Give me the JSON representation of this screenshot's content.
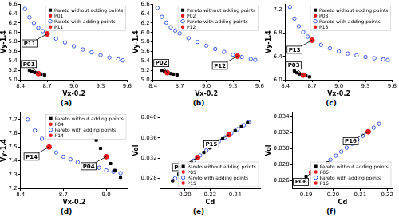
{
  "chart_data": [
    {
      "type": "scatter",
      "title": "(a)",
      "x_label": "Vx-0.2",
      "y_label": "Vy-1.4",
      "xlim": [
        8.4,
        9.6
      ],
      "ylim": [
        5.0,
        6.6
      ],
      "xticks": [
        8.4,
        8.7,
        {
          "value": 9,
          "label": "9.0"
        },
        9.3,
        9.6
      ],
      "yticks": [
        {
          "value": 5,
          "label": "5.0"
        },
        5.2,
        5.4,
        5.6,
        5.8,
        {
          "value": 6,
          "label": "6.0"
        },
        6.2,
        6.4,
        6.6
      ],
      "grid": false,
      "legend": "upper right",
      "series": [
        {
          "name": "Pareto without adding points",
          "color": "#000000",
          "marker": "square",
          "x": [
            8.5,
            8.53,
            8.56,
            8.6,
            8.63,
            8.67
          ],
          "y": [
            5.2,
            5.17,
            5.15,
            5.13,
            5.12,
            5.1
          ]
        },
        {
          "name": "P01",
          "color": "#e41a1c",
          "marker": "circle",
          "x": [
            8.6
          ],
          "y": [
            5.13
          ]
        },
        {
          "name": "Pareto with adding points",
          "color": "#3b5bdb",
          "marker": "open_circle",
          "x": [
            8.45,
            8.5,
            8.55,
            8.6,
            8.65,
            8.7,
            8.8,
            8.9,
            9.0,
            9.1,
            9.2,
            9.3,
            9.4,
            9.5,
            9.55
          ],
          "y": [
            6.5,
            6.32,
            6.2,
            6.1,
            6.03,
            5.97,
            5.87,
            5.79,
            5.71,
            5.64,
            5.58,
            5.52,
            5.47,
            5.43,
            5.41
          ]
        },
        {
          "name": "P11",
          "color": "#e41a1c",
          "marker": "circle",
          "x": [
            8.7
          ],
          "y": [
            5.97
          ]
        }
      ],
      "annotations": [
        {
          "text": "P01",
          "x": 8.6,
          "y": 5.13
        },
        {
          "text": "P11",
          "x": 8.7,
          "y": 5.97
        }
      ]
    },
    {
      "type": "scatter",
      "title": "(b)",
      "x_label": "Vx-0.2",
      "y_label": "Vy-1.4",
      "xlim": [
        8.4,
        9.6
      ],
      "ylim": [
        5.0,
        6.6
      ],
      "xticks": [
        8.4,
        8.7,
        {
          "value": 9,
          "label": "9.0"
        },
        9.3,
        9.6
      ],
      "yticks": [
        {
          "value": 5,
          "label": "5.0"
        },
        5.2,
        5.4,
        5.6,
        5.8,
        {
          "value": 6,
          "label": "6.0"
        },
        6.2,
        6.4,
        6.6
      ],
      "grid": false,
      "legend": "upper right",
      "series": [
        {
          "name": "Pareto without adding points",
          "color": "#000000",
          "marker": "square",
          "x": [
            8.5,
            8.53,
            8.56,
            8.6,
            8.63,
            8.67
          ],
          "y": [
            5.2,
            5.17,
            5.15,
            5.13,
            5.12,
            5.1
          ]
        },
        {
          "name": "P02",
          "color": "#e41a1c",
          "marker": "circle",
          "x": [
            8.56
          ],
          "y": [
            5.15
          ]
        },
        {
          "name": "Pareto with adding points",
          "color": "#3b5bdb",
          "marker": "open_circle",
          "x": [
            8.45,
            8.5,
            8.55,
            8.6,
            8.65,
            8.7,
            8.8,
            8.9,
            9.0,
            9.1,
            9.2,
            9.3,
            9.4,
            9.5,
            9.55
          ],
          "y": [
            6.52,
            6.33,
            6.21,
            6.11,
            6.04,
            5.98,
            5.88,
            5.8,
            5.72,
            5.65,
            5.59,
            5.53,
            5.48,
            5.44,
            5.42
          ]
        },
        {
          "name": "P12",
          "color": "#e41a1c",
          "marker": "circle",
          "x": [
            9.35
          ],
          "y": [
            5.5
          ]
        }
      ],
      "annotations": [
        {
          "text": "P02",
          "x": 8.56,
          "y": 5.15
        },
        {
          "text": "P12",
          "x": 9.35,
          "y": 5.5
        }
      ]
    },
    {
      "type": "scatter",
      "title": "(c)",
      "x_label": "Vx-0.2",
      "y_label": "Vy-1.4",
      "xlim": [
        8.4,
        9.6
      ],
      "ylim": [
        6.0,
        7.3
      ],
      "xticks": [
        8.4,
        8.7,
        {
          "value": 9,
          "label": "9.0"
        },
        9.3,
        9.6
      ],
      "yticks": [
        {
          "value": 6,
          "label": "6.0"
        },
        6.4,
        6.8,
        7.2
      ],
      "grid": false,
      "legend": "upper right",
      "series": [
        {
          "name": "Pareto without adding points",
          "color": "#000000",
          "marker": "square",
          "x": [
            8.5,
            8.53,
            8.56,
            8.6,
            8.63,
            8.67
          ],
          "y": [
            6.15,
            6.12,
            6.1,
            6.08,
            6.07,
            6.05
          ]
        },
        {
          "name": "P03",
          "color": "#e41a1c",
          "marker": "circle",
          "x": [
            8.6
          ],
          "y": [
            6.08
          ]
        },
        {
          "name": "Pareto with adding points",
          "color": "#3b5bdb",
          "marker": "open_circle",
          "x": [
            8.45,
            8.5,
            8.55,
            8.6,
            8.65,
            8.7,
            8.8,
            8.9,
            9.0,
            9.1,
            9.2,
            9.3,
            9.4,
            9.5,
            9.55
          ],
          "y": [
            7.25,
            7.05,
            6.92,
            6.82,
            6.74,
            6.68,
            6.6,
            6.54,
            6.49,
            6.45,
            6.42,
            6.39,
            6.37,
            6.35,
            6.34
          ]
        },
        {
          "name": "P13",
          "color": "#e41a1c",
          "marker": "circle",
          "x": [
            8.7
          ],
          "y": [
            6.68
          ]
        }
      ],
      "annotations": [
        {
          "text": "P03",
          "x": 8.6,
          "y": 6.08
        },
        {
          "text": "P13",
          "x": 8.7,
          "y": 6.68
        }
      ]
    },
    {
      "type": "scatter",
      "title": "(d)",
      "x_label": "Vx-0.2",
      "y_label": "Vy-1.4",
      "xlim": [
        8.4,
        9.15
      ],
      "ylim": [
        7.2,
        7.75
      ],
      "xticks": [
        8.4,
        8.7,
        {
          "value": 9,
          "label": "9.0"
        }
      ],
      "yticks": [
        7.2,
        7.3,
        7.4,
        7.5,
        7.6,
        7.7
      ],
      "grid": false,
      "legend": "upper right",
      "series": [
        {
          "name": "Pareto without adding points",
          "color": "#000000",
          "marker": "square",
          "x": [
            8.9,
            8.93,
            8.96,
            9.0,
            9.03,
            9.06,
            9.1
          ],
          "y": [
            7.6,
            7.55,
            7.49,
            7.43,
            7.38,
            7.33,
            7.28
          ]
        },
        {
          "name": "P04",
          "color": "#e41a1c",
          "marker": "circle",
          "x": [
            9.0
          ],
          "y": [
            7.43
          ]
        },
        {
          "name": "Pareto with adding points",
          "color": "#3b5bdb",
          "marker": "open_circle",
          "x": [
            8.45,
            8.5,
            8.55,
            8.6,
            8.65,
            8.7,
            8.75,
            8.8,
            8.85,
            8.9,
            8.95,
            9.0,
            9.05,
            9.1
          ],
          "y": [
            7.7,
            7.62,
            7.56,
            7.5,
            7.46,
            7.43,
            7.41,
            7.39,
            7.37,
            7.36,
            7.35,
            7.33,
            7.32,
            7.31
          ]
        },
        {
          "name": "P14",
          "color": "#e41a1c",
          "marker": "circle",
          "x": [
            8.6
          ],
          "y": [
            7.5
          ]
        }
      ],
      "annotations": [
        {
          "text": "P04",
          "x": 9.0,
          "y": 7.43
        },
        {
          "text": "P14",
          "x": 8.6,
          "y": 7.5
        }
      ]
    },
    {
      "type": "scatter",
      "title": "(e)",
      "x_label": "Cd",
      "y_label": "Vol",
      "xlim": [
        0.18,
        0.26
      ],
      "ylim": [
        0.026,
        0.041
      ],
      "xticks": [
        {
          "value": 0.2,
          "label": "0.20"
        },
        0.22,
        0.24
      ],
      "yticks": [
        0.028,
        0.032,
        0.036,
        {
          "value": 0.04,
          "label": "0.040"
        }
      ],
      "grid": false,
      "legend": "lower right",
      "series": [
        {
          "name": "Pareto without adding points",
          "color": "#000000",
          "marker": "square",
          "x": [
            0.19,
            0.195,
            0.2,
            0.205,
            0.21,
            0.215,
            0.22,
            0.225,
            0.23,
            0.235,
            0.24,
            0.245,
            0.25
          ],
          "y": [
            0.0275,
            0.0288,
            0.03,
            0.0311,
            0.0321,
            0.0331,
            0.034,
            0.0349,
            0.0358,
            0.0366,
            0.0374,
            0.0382,
            0.039
          ]
        },
        {
          "name": "P05",
          "color": "#e41a1c",
          "marker": "circle",
          "x": [
            0.21
          ],
          "y": [
            0.0321
          ]
        },
        {
          "name": "Pareto with adding points",
          "color": "#3b5bdb",
          "marker": "open_circle",
          "x": [
            0.192,
            0.197,
            0.202,
            0.207,
            0.212,
            0.217,
            0.222,
            0.227,
            0.232,
            0.237,
            0.242,
            0.247,
            0.251
          ],
          "y": [
            0.028,
            0.0293,
            0.0305,
            0.0315,
            0.0325,
            0.0335,
            0.0344,
            0.0353,
            0.0361,
            0.0369,
            0.0377,
            0.0385,
            0.0391
          ]
        },
        {
          "name": "P15",
          "color": "#e41a1c",
          "marker": "circle",
          "x": [
            0.235
          ],
          "y": [
            0.0366
          ]
        }
      ],
      "annotations": [
        {
          "text": "P05",
          "x": 0.21,
          "y": 0.0321
        },
        {
          "text": "P15",
          "x": 0.235,
          "y": 0.0366
        }
      ]
    },
    {
      "type": "scatter",
      "title": "(f)",
      "x_label": "Cd",
      "y_label": "Vol",
      "xlim": [
        0.185,
        0.222
      ],
      "ylim": [
        0.025,
        0.0345
      ],
      "xticks": [
        0.19,
        {
          "value": 0.2,
          "label": "0.20"
        },
        0.21,
        0.22
      ],
      "yticks": [
        0.026,
        0.028,
        {
          "value": 0.03,
          "label": "0.030"
        },
        0.032,
        0.034
      ],
      "grid": false,
      "legend": "lower right",
      "series": [
        {
          "name": "Pareto without adding points",
          "color": "#000000",
          "marker": "square",
          "x": [
            0.19,
            0.192,
            0.194,
            0.196,
            0.198
          ],
          "y": [
            0.0265,
            0.027,
            0.0274,
            0.0278,
            0.0282
          ]
        },
        {
          "name": "P06",
          "color": "#e41a1c",
          "marker": "circle",
          "x": [
            0.192
          ],
          "y": [
            0.027
          ]
        },
        {
          "name": "Pareto with adding points",
          "color": "#3b5bdb",
          "marker": "open_circle",
          "x": [
            0.199,
            0.201,
            0.203,
            0.205,
            0.207,
            0.209,
            0.211,
            0.213,
            0.215,
            0.217
          ],
          "y": [
            0.0286,
            0.0291,
            0.0296,
            0.0301,
            0.0306,
            0.0311,
            0.0316,
            0.0321,
            0.0326,
            0.0331
          ]
        },
        {
          "name": "P16",
          "color": "#e41a1c",
          "marker": "circle",
          "x": [
            0.213
          ],
          "y": [
            0.0321
          ]
        }
      ],
      "annotations": [
        {
          "text": "P06",
          "x": 0.192,
          "y": 0.027
        },
        {
          "text": "P16",
          "x": 0.213,
          "y": 0.0321
        }
      ]
    }
  ]
}
